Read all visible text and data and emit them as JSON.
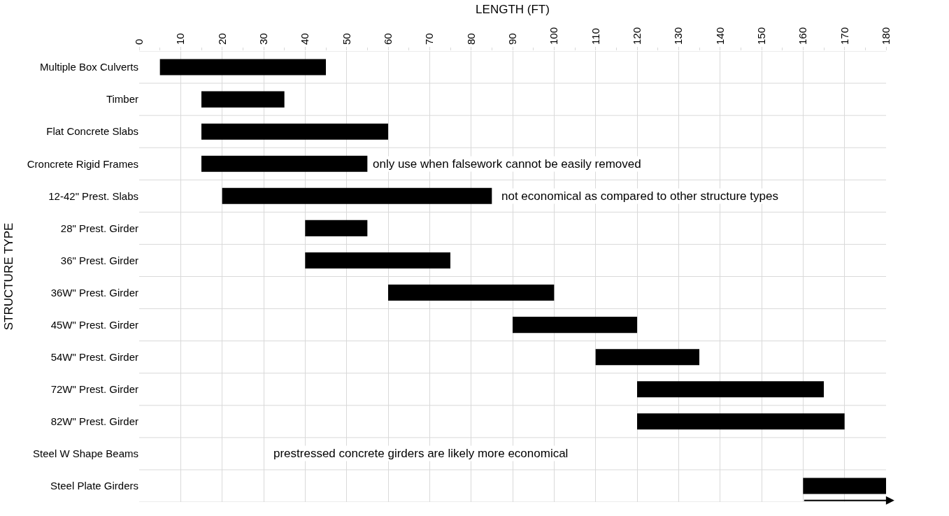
{
  "chart_data": {
    "type": "bar",
    "orientation": "horizontal",
    "xlabel": "LENGTH (FT)",
    "ylabel": "STRUCTURE TYPE",
    "categories": [
      "Multiple Box Culverts",
      "Timber",
      "Flat Concrete Slabs",
      "Croncrete Rigid Frames",
      "12-42\" Prest. Slabs",
      "28\" Prest. Girder",
      "36\" Prest. Girder",
      "36W\" Prest. Girder",
      "45W\" Prest. Girder",
      "54W\" Prest. Girder",
      "72W\" Prest. Girder",
      "82W\" Prest. Girder",
      "Steel W Shape Beams",
      "Steel Plate Girders"
    ],
    "base": [
      5,
      15,
      15,
      15,
      20,
      40,
      40,
      60,
      90,
      110,
      120,
      120,
      null,
      160
    ],
    "values": [
      40,
      20,
      45,
      40,
      65,
      15,
      35,
      40,
      30,
      25,
      45,
      50,
      null,
      20
    ],
    "color": "#000000",
    "xlim": [
      0,
      180
    ],
    "xticks": [
      0,
      10,
      20,
      30,
      40,
      50,
      60,
      70,
      80,
      90,
      100,
      110,
      120,
      130,
      140,
      150,
      160,
      170,
      180
    ],
    "grid": true,
    "legend": false,
    "annotations": [
      "only use when falsework cannot be easily removed",
      "not economical as compared to other structure types",
      "prestressed concrete girders are likely more economical"
    ]
  }
}
